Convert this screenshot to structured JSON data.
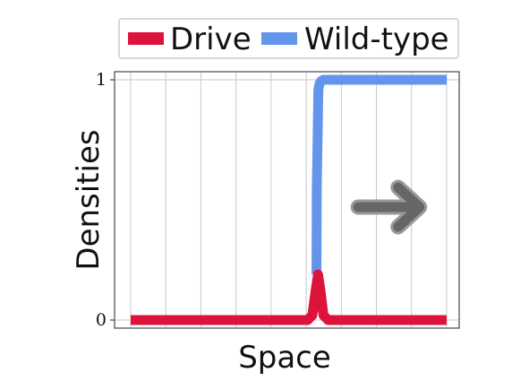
{
  "chart_data": {
    "type": "line",
    "title": "",
    "xlabel": "Space",
    "ylabel": "Densities",
    "ylim": [
      0,
      1
    ],
    "yticks": [
      {
        "value": 0,
        "label": "0"
      },
      {
        "value": 1,
        "label": "1"
      }
    ],
    "xticks_visible": false,
    "grid": {
      "vertical": true,
      "horizontal": true
    },
    "xlim": [
      0,
      1
    ],
    "vertical_gridlines": [
      0.0,
      0.1111,
      0.2222,
      0.3333,
      0.4444,
      0.5556,
      0.6667,
      0.7778,
      0.8889,
      1.0
    ],
    "legend": {
      "placement": "top",
      "entries": [
        {
          "label": "Drive",
          "color": "#dc143c"
        },
        {
          "label": "Wild-type",
          "color": "#6495ed"
        }
      ]
    },
    "series": [
      {
        "name": "Drive",
        "color": "#dc143c",
        "x": [
          0,
          0.56,
          0.575,
          0.585,
          0.593,
          0.601,
          0.61,
          0.625,
          1
        ],
        "y": [
          0,
          0,
          0.02,
          0.12,
          0.19,
          0.12,
          0.02,
          0,
          0
        ]
      },
      {
        "name": "Wild-type",
        "color": "#6495ed",
        "x": [
          0.588,
          0.589,
          0.594,
          0.598,
          0.603,
          0.61,
          1
        ],
        "y": [
          0.19,
          0.55,
          0.96,
          0.985,
          0.995,
          1,
          1
        ]
      }
    ],
    "annotations": [
      {
        "type": "arrow",
        "direction": "right",
        "color": "#666666",
        "x_from": 0.72,
        "x_to": 0.92,
        "y": 0.47
      }
    ]
  }
}
